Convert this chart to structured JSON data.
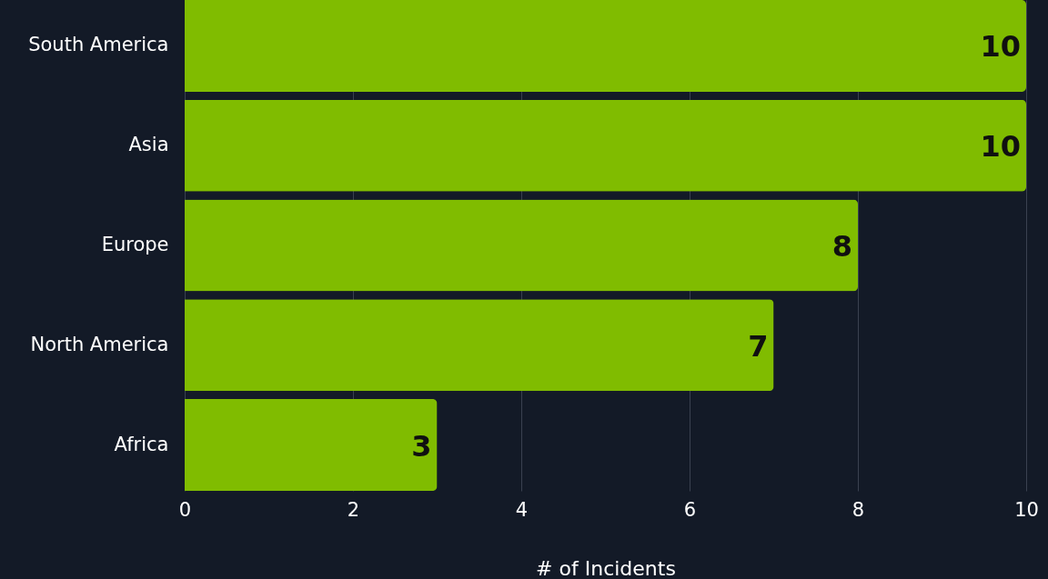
{
  "chart_data": {
    "type": "bar",
    "orientation": "horizontal",
    "categories": [
      "South America",
      "Asia",
      "Europe",
      "North America",
      "Africa"
    ],
    "values": [
      10,
      10,
      8,
      7,
      3
    ],
    "color": "#80bc00",
    "xlabel": "# of Incidents",
    "xlim": [
      0,
      10
    ],
    "xticks": [
      0,
      2,
      4,
      6,
      8,
      10
    ],
    "grid": "x",
    "data_labels": true
  }
}
